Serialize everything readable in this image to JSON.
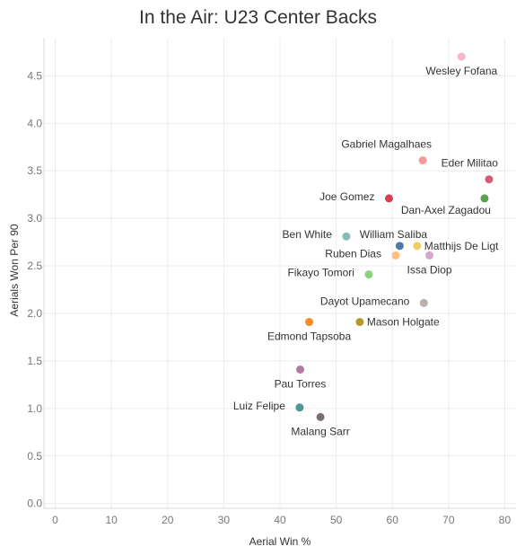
{
  "chart_data": {
    "type": "scatter",
    "title": "In the Air: U23 Center Backs",
    "xlabel": "Aerial Win %",
    "ylabel": "Aerials Won Per 90",
    "xlim": [
      -2,
      82
    ],
    "ylim": [
      -0.05,
      4.9
    ],
    "x_ticks": [
      0,
      10,
      20,
      30,
      40,
      50,
      60,
      70,
      80
    ],
    "y_ticks": [
      "0.0",
      "0.5",
      "1.0",
      "1.5",
      "2.0",
      "2.5",
      "3.0",
      "3.5",
      "4.0",
      "4.5"
    ],
    "grid": true,
    "points": [
      {
        "label": "Wesley Fofana",
        "x": 72.3,
        "y": 4.7,
        "color": "#f7b6d2",
        "anchor": "bottom-center"
      },
      {
        "label": "Gabriel Magalhaes",
        "x": 65.4,
        "y": 3.61,
        "color": "#ff9896",
        "anchor": "top-left"
      },
      {
        "label": "Eder Militao",
        "x": 77.2,
        "y": 3.41,
        "color": "#d55e74",
        "anchor": "top-left"
      },
      {
        "label": "Joe Gomez",
        "x": 59.4,
        "y": 3.21,
        "color": "#d6404e",
        "anchor": "left"
      },
      {
        "label": "Dan-Axel Zagadou",
        "x": 76.4,
        "y": 3.21,
        "color": "#59a14f",
        "anchor": "bottom-left"
      },
      {
        "label": "Ben White",
        "x": 51.8,
        "y": 2.81,
        "color": "#86bcb6",
        "anchor": "left"
      },
      {
        "label": "William Saliba",
        "x": 61.3,
        "y": 2.71,
        "color": "#4e79a7",
        "anchor": "top-center"
      },
      {
        "label": "Matthijs De Ligt",
        "x": 64.4,
        "y": 2.71,
        "color": "#f1ce63",
        "anchor": "right"
      },
      {
        "label": "Ruben Dias",
        "x": 60.6,
        "y": 2.61,
        "color": "#ffbe7d",
        "anchor": "left"
      },
      {
        "label": "Issa Diop",
        "x": 66.6,
        "y": 2.61,
        "color": "#d4a6c8",
        "anchor": "bottom-center"
      },
      {
        "label": "Fikayo Tomori",
        "x": 55.8,
        "y": 2.41,
        "color": "#8cd17d",
        "anchor": "left"
      },
      {
        "label": "Dayot Upamecano",
        "x": 65.6,
        "y": 2.11,
        "color": "#bab0ac",
        "anchor": "left"
      },
      {
        "label": "Edmond Tapsoba",
        "x": 45.2,
        "y": 1.91,
        "color": "#f28e2b",
        "anchor": "bottom-center"
      },
      {
        "label": "Mason Holgate",
        "x": 54.2,
        "y": 1.91,
        "color": "#b6992d",
        "anchor": "right"
      },
      {
        "label": "Pau Torres",
        "x": 43.6,
        "y": 1.41,
        "color": "#b07aa1",
        "anchor": "bottom-center"
      },
      {
        "label": "Luiz Felipe",
        "x": 43.5,
        "y": 1.01,
        "color": "#499894",
        "anchor": "left"
      },
      {
        "label": "Malang Sarr",
        "x": 47.2,
        "y": 0.91,
        "color": "#79706e",
        "anchor": "bottom-center"
      }
    ]
  }
}
